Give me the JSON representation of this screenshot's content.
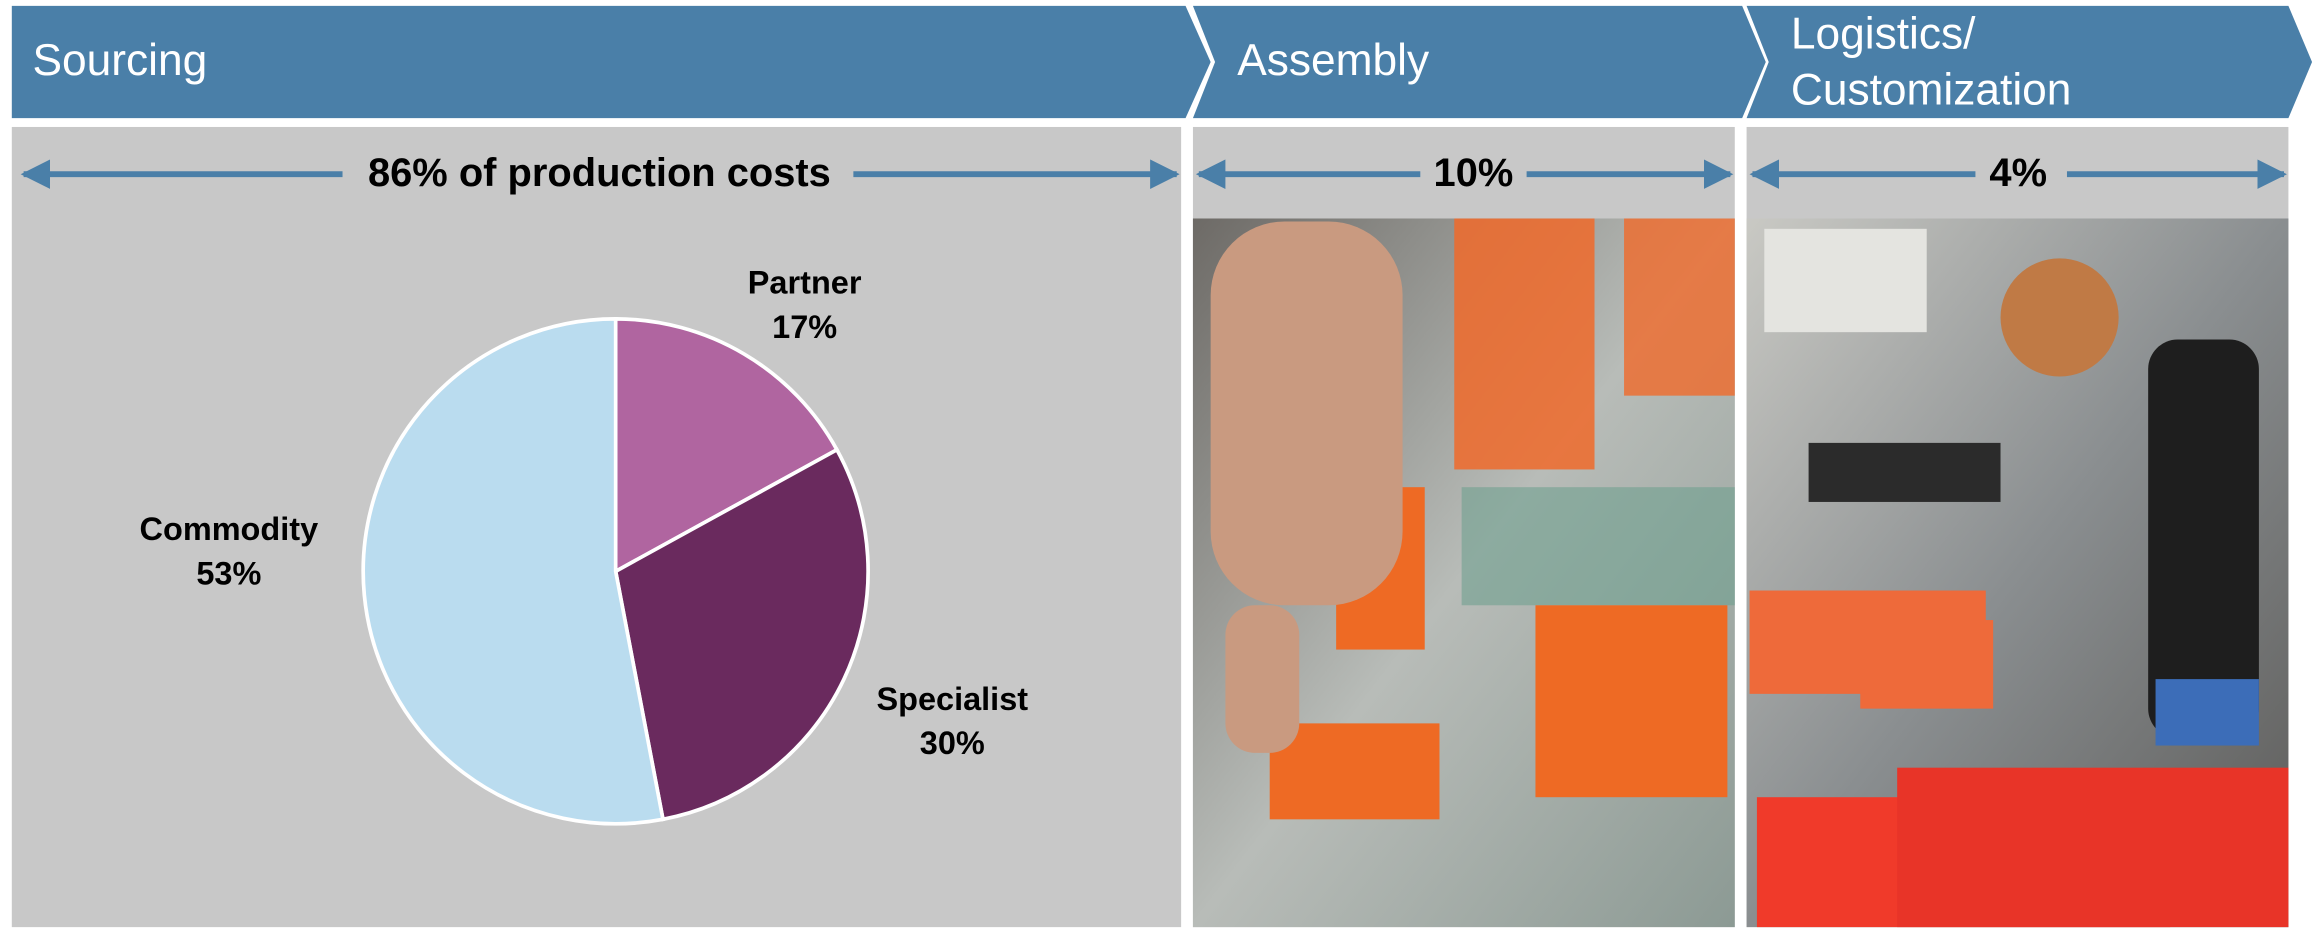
{
  "stages": [
    {
      "title": [
        "Sourcing"
      ],
      "share": "86% of production costs"
    },
    {
      "title": [
        "Assembly"
      ],
      "share": "10%"
    },
    {
      "title": [
        "Logistics/",
        "Customization"
      ],
      "share": "4%"
    }
  ],
  "chart_data": {
    "type": "pie",
    "categories": [
      "Partner",
      "Specialist",
      "Commodity"
    ],
    "values": [
      17,
      30,
      53
    ],
    "value_labels": [
      "17%",
      "30%",
      "53%"
    ],
    "colors": [
      "#b065a0",
      "#6a2a5e",
      "#badcef"
    ]
  }
}
